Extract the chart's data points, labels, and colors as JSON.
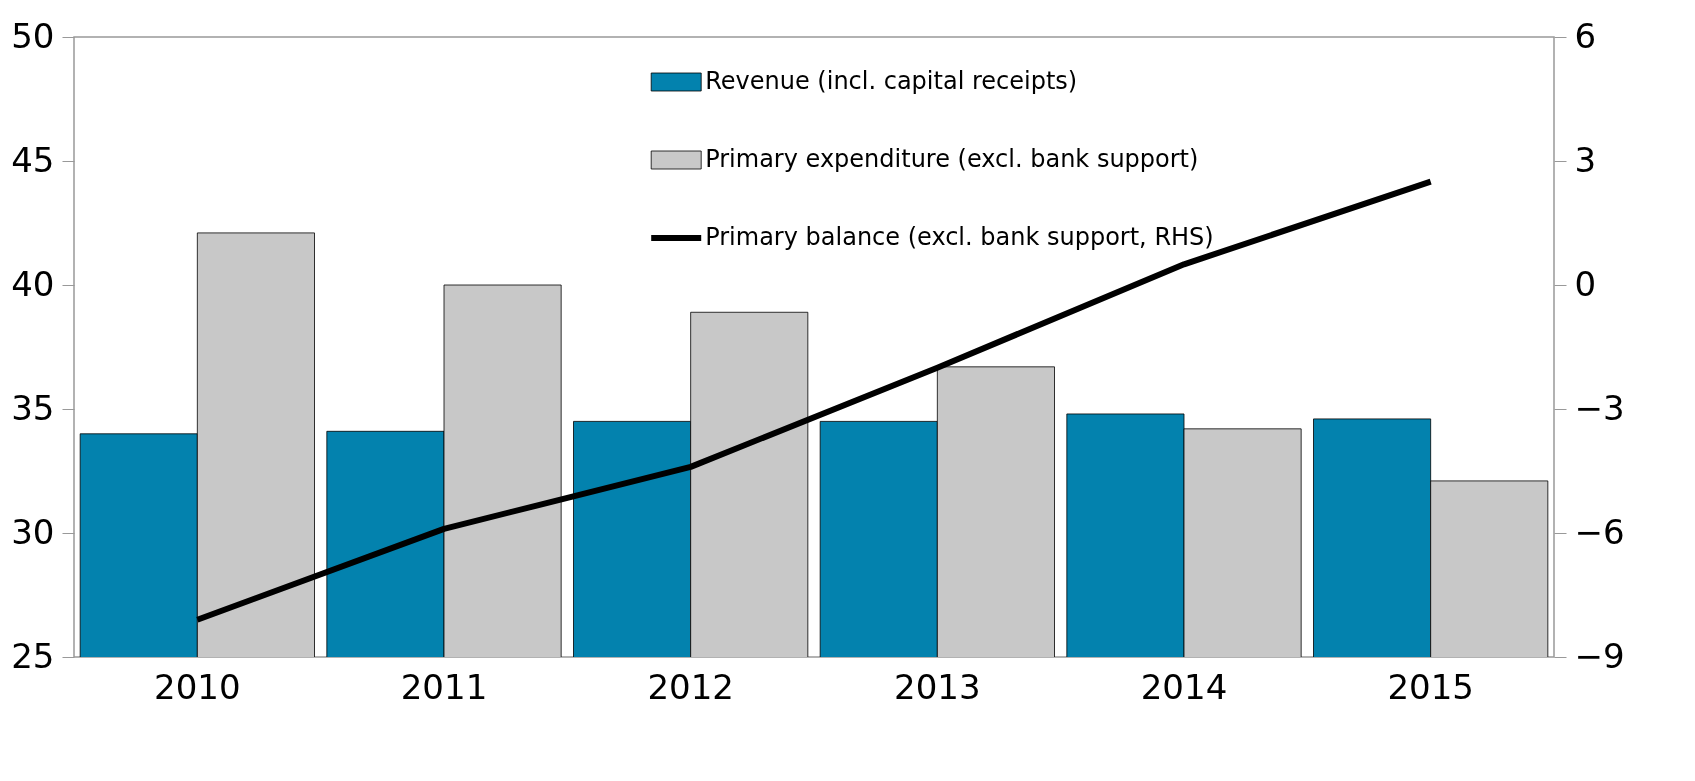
{
  "chart_data": {
    "type": "bar",
    "categories": [
      "2010",
      "2011",
      "2012",
      "2013",
      "2014",
      "2015"
    ],
    "series": [
      {
        "name": "Revenue (incl. capital receipts)",
        "color": "#0382ae",
        "values": [
          34.0,
          34.1,
          34.5,
          34.5,
          34.8,
          34.6
        ]
      },
      {
        "name": "Primary expenditure (excl. bank support)",
        "color": "#c8c8c8",
        "values": [
          42.1,
          40.0,
          38.9,
          36.7,
          34.2,
          32.1
        ]
      },
      {
        "name": "Primary balance (excl. bank support, RHS)",
        "type": "line",
        "axis": "y2",
        "color": "#000000",
        "values": [
          -8.1,
          -5.9,
          -4.4,
          -2.0,
          0.5,
          2.5
        ]
      }
    ],
    "ylim": [
      25,
      50
    ],
    "yticks": [
      25,
      30,
      35,
      40,
      45,
      50
    ],
    "y2lim": [
      -9,
      6
    ],
    "y2ticks": [
      -9,
      -6,
      -3,
      0,
      3,
      6
    ],
    "grid": false,
    "legend": "top",
    "marker": "none",
    "line_style": "solid"
  }
}
